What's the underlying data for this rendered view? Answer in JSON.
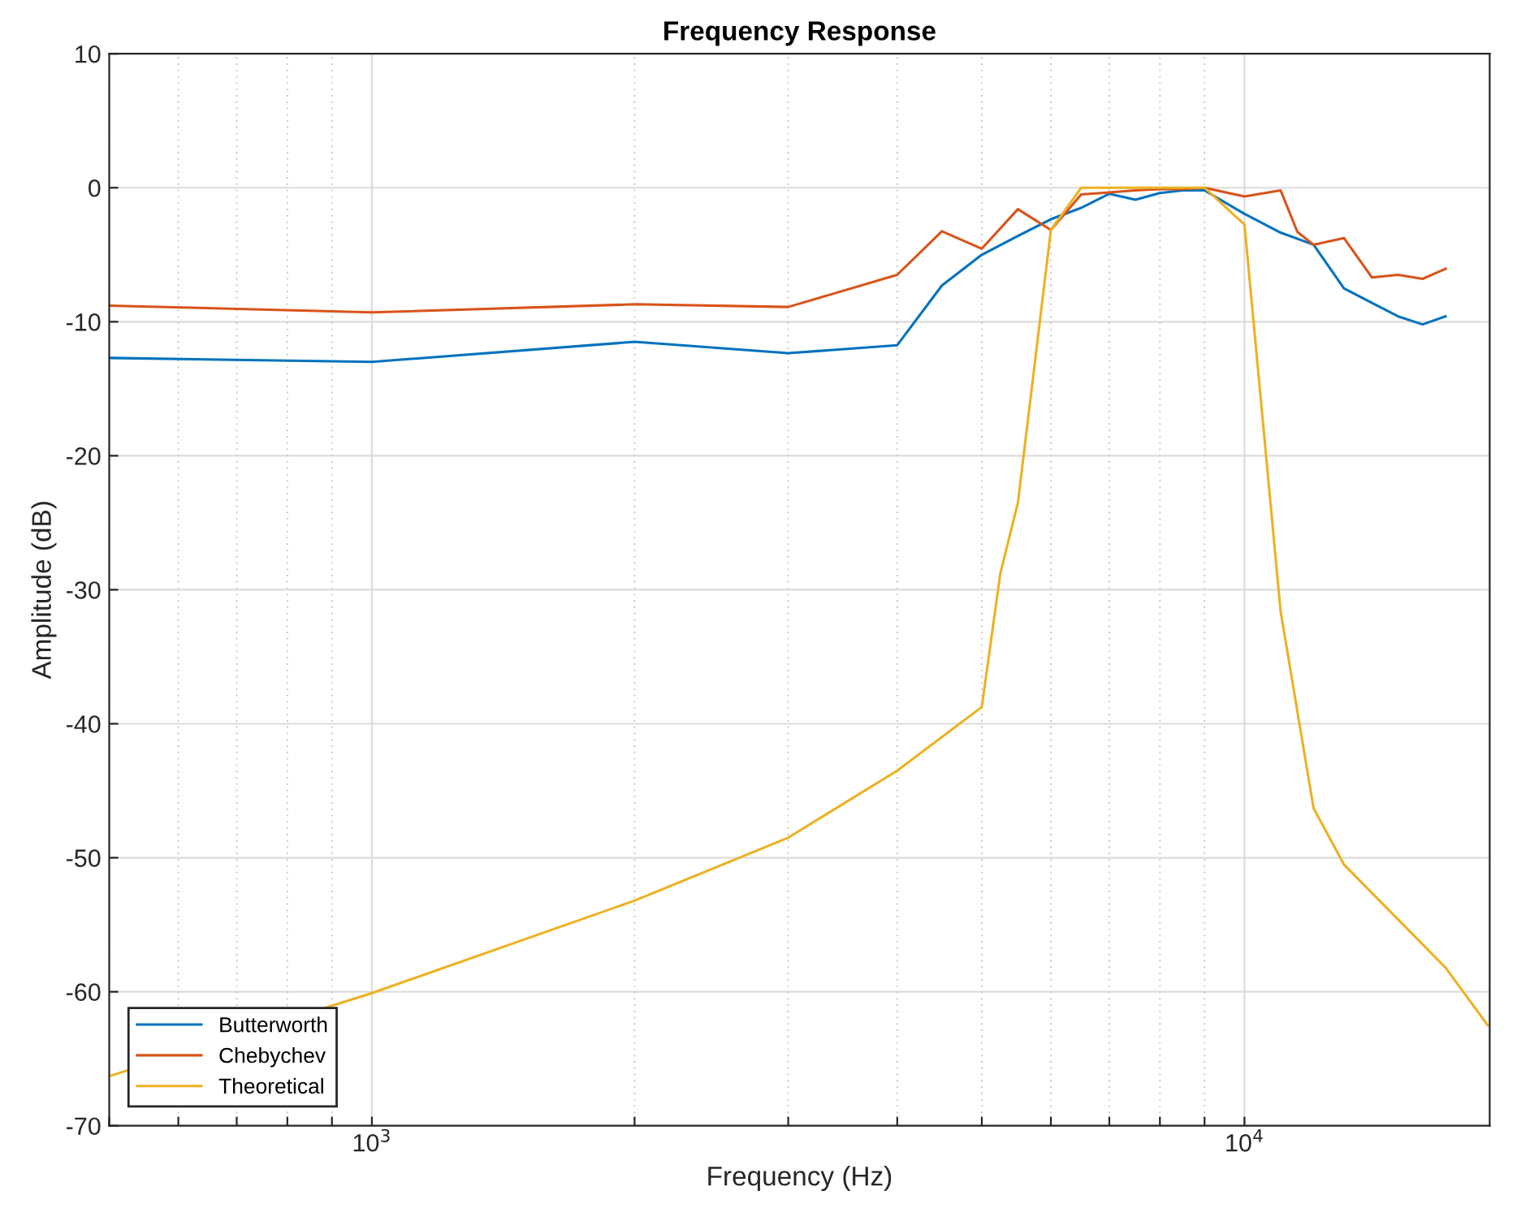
{
  "chart_data": {
    "type": "line",
    "title": "Frequency Response",
    "xlabel": "Frequency (Hz)",
    "ylabel": "Amplitude (dB)",
    "log": "x",
    "xlim": [
      500,
      19100
    ],
    "ylim": [
      -70,
      10
    ],
    "xticks": [
      {
        "value": 500,
        "label": null
      },
      {
        "value": 600,
        "label": null
      },
      {
        "value": 700,
        "label": null
      },
      {
        "value": 800,
        "label": null
      },
      {
        "value": 900,
        "label": null
      },
      {
        "value": 1000,
        "label": "10$^{3}$"
      },
      {
        "value": 2000,
        "label": null
      },
      {
        "value": 3000,
        "label": null
      },
      {
        "value": 4000,
        "label": null
      },
      {
        "value": 5000,
        "label": null
      },
      {
        "value": 6000,
        "label": null
      },
      {
        "value": 7000,
        "label": null
      },
      {
        "value": 8000,
        "label": null
      },
      {
        "value": 9000,
        "label": null
      },
      {
        "value": 10000,
        "label": "10$^{4}$"
      }
    ],
    "yticks": [
      -70,
      -60,
      -50,
      -40,
      -30,
      -20,
      -10,
      0,
      10
    ],
    "grid": true,
    "legend": "bottom left",
    "line_style": "solid",
    "marker": "none",
    "series": [
      {
        "name": "Butterworth",
        "color": "#0072bd",
        "x": [
          500,
          1000,
          2000,
          3000,
          4000,
          4500,
          5000,
          5500,
          6000,
          6500,
          7000,
          7500,
          8000,
          8500,
          9000,
          10000,
          11000,
          12000,
          13000,
          14000,
          15000,
          16000,
          17000
        ],
        "values": [
          -12.7,
          -13.0,
          -11.5,
          -12.35,
          -11.75,
          -7.3,
          -5.0,
          -3.6,
          -2.35,
          -1.5,
          -0.45,
          -0.9,
          -0.4,
          -0.2,
          -0.2,
          -1.95,
          -3.35,
          -4.25,
          -7.5,
          -8.6,
          -9.6,
          -10.2,
          -9.6
        ]
      },
      {
        "name": "Chebychev",
        "color": "#d95319",
        "x": [
          500,
          1000,
          2000,
          3000,
          4000,
          4500,
          5000,
          5500,
          6000,
          6500,
          7000,
          7500,
          8000,
          8500,
          9000,
          10000,
          11000,
          11500,
          12000,
          13000,
          14000,
          15000,
          16000,
          17000
        ],
        "values": [
          -8.8,
          -9.3,
          -8.7,
          -8.9,
          -6.5,
          -3.25,
          -4.55,
          -1.6,
          -3.15,
          -0.5,
          -0.35,
          -0.2,
          -0.1,
          -0.1,
          0.0,
          -0.65,
          -0.2,
          -3.3,
          -4.25,
          -3.75,
          -6.7,
          -6.5,
          -6.8,
          -6.05
        ]
      },
      {
        "name": "Theoretical",
        "color": "#edb120",
        "x": [
          500,
          1000,
          2000,
          3000,
          4000,
          5000,
          5250,
          5500,
          6000,
          6500,
          7000,
          8000,
          9000,
          10000,
          11000,
          12000,
          13000,
          17000,
          19000
        ],
        "values": [
          -66.3,
          -60.1,
          -53.2,
          -48.5,
          -43.5,
          -38.75,
          -28.8,
          -23.5,
          -3.15,
          0.0,
          0.0,
          0.0,
          0.0,
          -2.75,
          -31.6,
          -46.3,
          -50.5,
          -58.2,
          -62.5
        ]
      }
    ]
  }
}
